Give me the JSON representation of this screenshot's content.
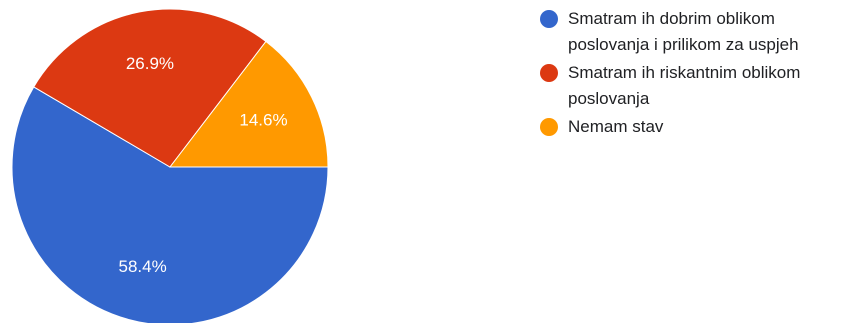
{
  "chart_data": {
    "type": "pie",
    "categories": [
      "Smatram ih dobrim oblikom poslovanja i prilikom za uspjeh",
      "Smatram ih riskantnim oblikom poslovanja",
      "Nemam stav"
    ],
    "values": [
      58.4,
      26.9,
      14.6
    ],
    "value_labels": [
      "58.4%",
      "26.9%",
      "14.6%"
    ],
    "colors": [
      "#3366cc",
      "#dc3912",
      "#ff9900"
    ],
    "legend_position": "right"
  }
}
